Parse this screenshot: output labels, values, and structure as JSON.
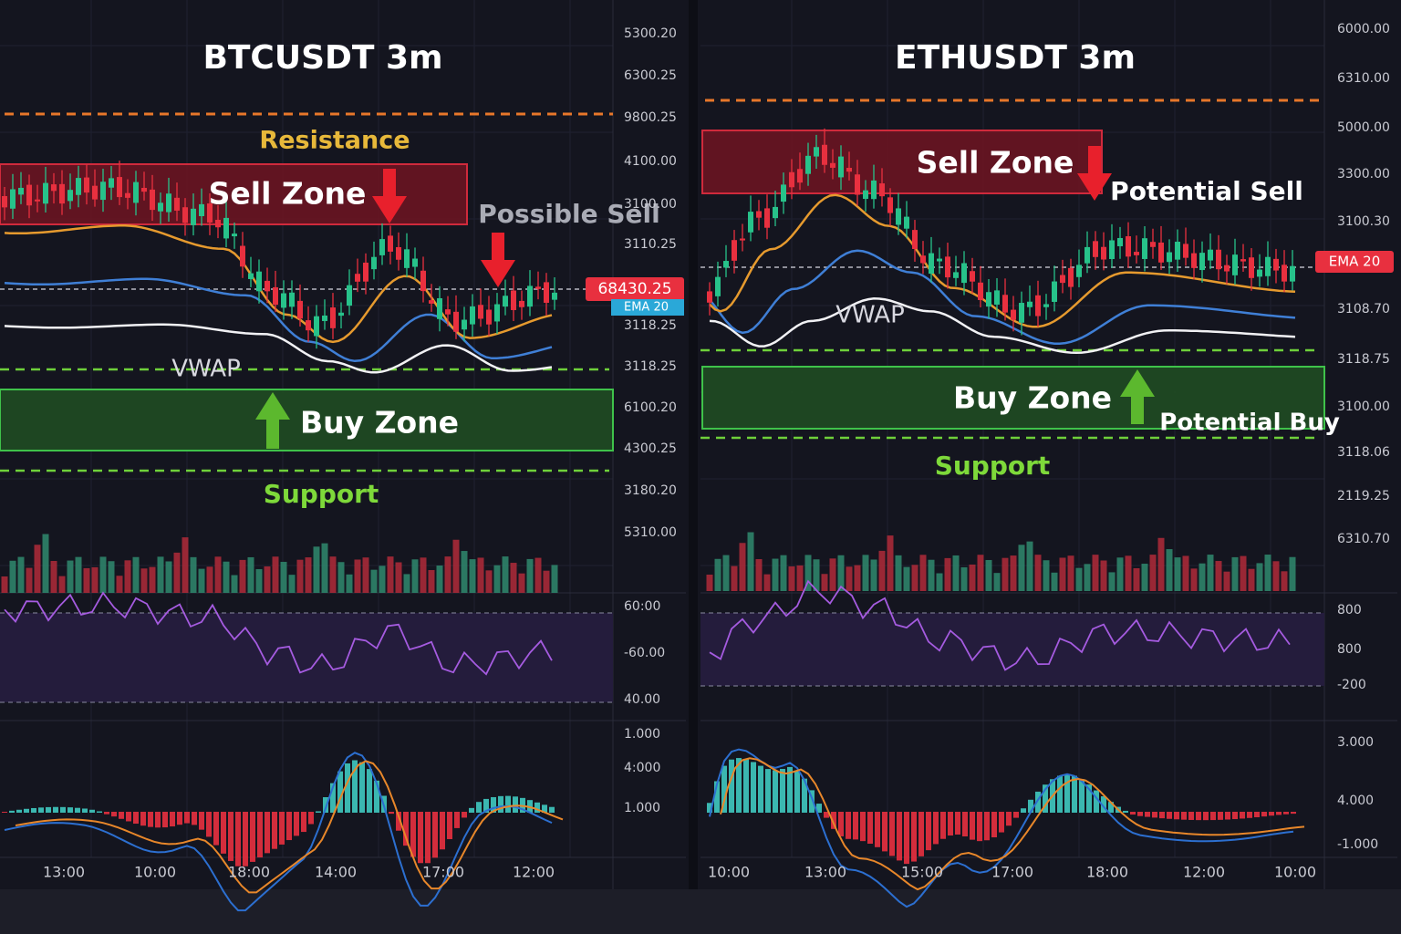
{
  "panels": [
    {
      "title": "BTCUSDT 3m",
      "price_labels": [
        "5300.20",
        "6300.25",
        "9800.25",
        "4100.00",
        "3100.00",
        "3110.25",
        "3118.25",
        "3118.25",
        "6100.20",
        "4300.25",
        "3180.20",
        "5310.00"
      ],
      "price_tag": "68430.25",
      "ema_tag": "EMA 20",
      "rsi_labels": [
        "60:00",
        "-60.00",
        "40.00"
      ],
      "macd_labels": [
        "1.000",
        "4:000",
        "1.000"
      ],
      "time_labels": [
        "13:00",
        "10:00",
        "18:00",
        "14:00",
        "17:00",
        "12:00"
      ],
      "annotations": {
        "resistance": "Resistance",
        "sell_zone": "Sell Zone",
        "sell_note": "Possible Sell",
        "vwap": "VWAP",
        "buy_zone": "Buy Zone",
        "support": "Support"
      }
    },
    {
      "title": "ETHUSDT 3m",
      "price_labels": [
        "6000.00",
        "6310.00",
        "5000.00",
        "3300.00",
        "3100.30",
        "3108.70",
        "3118.75",
        "3100.00",
        "3118.06",
        "2119.25",
        "6310.70"
      ],
      "ema_tag": "EMA 20",
      "rsi_labels": [
        "800",
        "800",
        "-200"
      ],
      "macd_labels": [
        "3.000",
        "4.000",
        "-1.000"
      ],
      "time_labels": [
        "10:00",
        "13:00",
        "15:00",
        "17:00",
        "18:00",
        "12:00",
        "10:00"
      ],
      "annotations": {
        "sell_zone": "Sell Zone",
        "sell_note": "Potential Sell",
        "vwap": "VWAP",
        "buy_zone": "Buy Zone",
        "buy_note": "Potential Buy",
        "support": "Support"
      }
    }
  ]
}
